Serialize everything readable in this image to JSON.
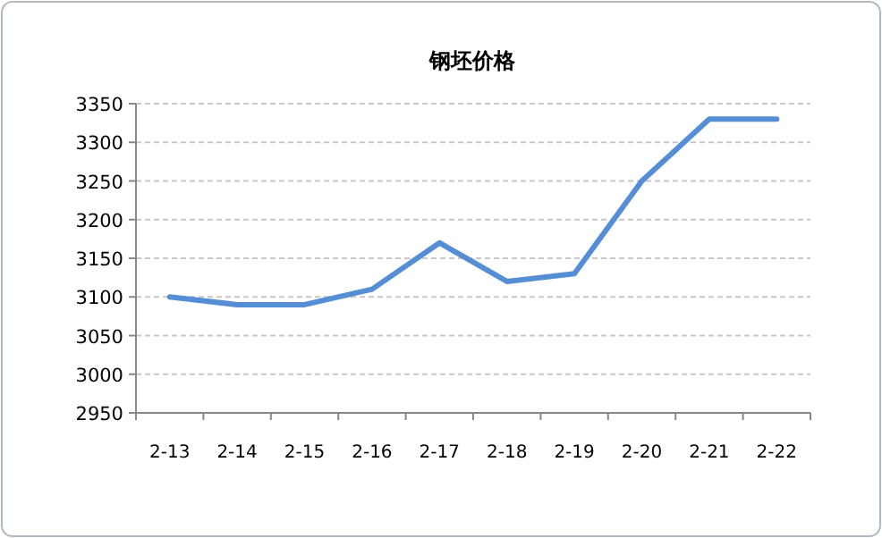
{
  "chart_data": {
    "type": "line",
    "title": "钢坯价格",
    "categories": [
      "2-13",
      "2-14",
      "2-15",
      "2-16",
      "2-17",
      "2-18",
      "2-19",
      "2-20",
      "2-21",
      "2-22"
    ],
    "series": [
      {
        "color": "#558ed5",
        "values": [
          3100,
          3090,
          3090,
          3110,
          3170,
          3120,
          3130,
          3250,
          3330,
          3330
        ]
      }
    ],
    "ylim": [
      2950,
      3350
    ],
    "yticks": [
      2950,
      3000,
      3050,
      3100,
      3150,
      3200,
      3250,
      3300,
      3350
    ],
    "grid": "y",
    "marker": "none",
    "line_style": "solid"
  }
}
